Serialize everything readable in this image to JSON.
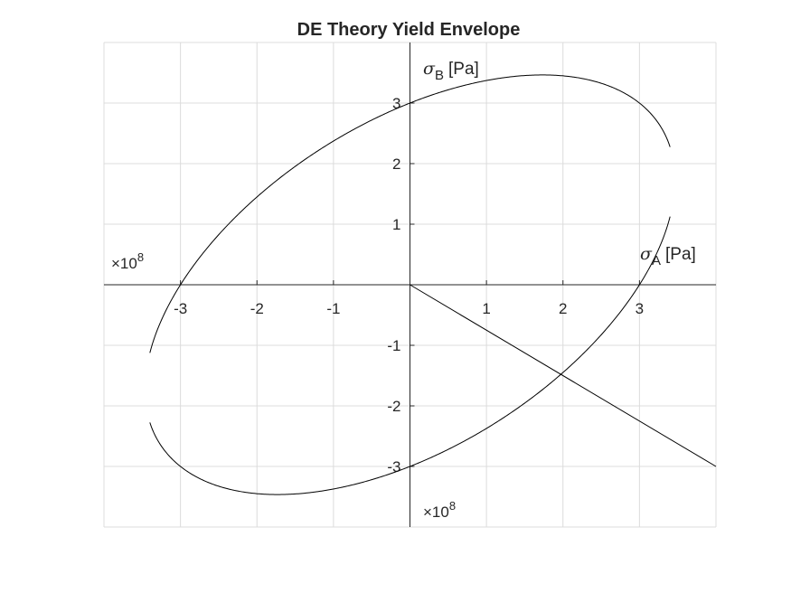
{
  "chart_data": {
    "type": "line",
    "title": "DE Theory Yield Envelope",
    "xlabel": {
      "symbol": "σ",
      "subscript": "A",
      "unit": "[Pa]"
    },
    "ylabel": {
      "symbol": "σ",
      "subscript": "B",
      "unit": "[Pa]"
    },
    "x_exponent": {
      "prefix": "×10",
      "power": "8"
    },
    "y_exponent": {
      "prefix": "×10",
      "power": "8"
    },
    "xlim": [
      -4,
      4
    ],
    "ylim": [
      -4,
      4
    ],
    "xticks": [
      -3,
      -2,
      -1,
      1,
      2,
      3
    ],
    "yticks": [
      -3,
      -2,
      -1,
      1,
      2,
      3
    ],
    "x_tick_labels": [
      "-3",
      "-2",
      "-1",
      "1",
      "2",
      "3"
    ],
    "y_tick_labels": [
      "-3",
      "-2",
      "-1",
      "1",
      "2",
      "3"
    ],
    "grid": true,
    "axes_through_origin": true,
    "series": [
      {
        "kind": "ellipse",
        "equation": "sigmaA^2 - sigmaA*sigmaB + sigmaB^2 = Sy^2",
        "Sy": 3,
        "clip": [
          -3.4,
          3.4
        ],
        "color": "#000000"
      },
      {
        "kind": "line",
        "x": [
          0,
          4
        ],
        "y": [
          0,
          -3
        ],
        "color": "#000000"
      }
    ]
  }
}
